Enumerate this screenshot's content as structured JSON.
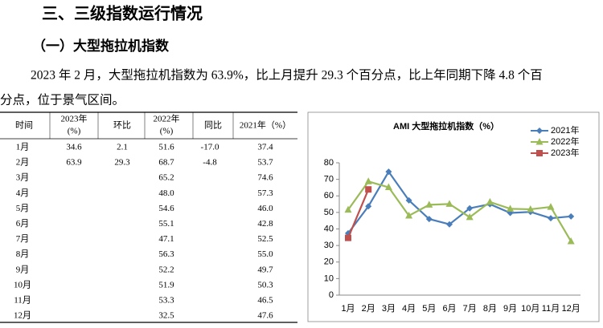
{
  "header": {
    "title": "三、三级指数运行情况",
    "subtitle": "（一）大型拖拉机指数"
  },
  "paragraph": {
    "lines": [
      "2023 年 2 月，大型拖拉机指数为 63.9%，比上月提升 29.3 个百分点，比上年同期下降 4.8 个百",
      "分点，位于景气区间。"
    ]
  },
  "table": {
    "header": [
      [
        "时间"
      ],
      [
        "2023年",
        "(%)"
      ],
      [
        "环比"
      ],
      [
        "2022年",
        "(%)"
      ],
      [
        "同比"
      ],
      [
        "2021年（%）"
      ]
    ],
    "rows": [
      [
        "1月",
        "34.6",
        "2.1",
        "51.6",
        "-17.0",
        "37.4"
      ],
      [
        "2月",
        "63.9",
        "29.3",
        "68.7",
        "-4.8",
        "53.7"
      ],
      [
        "3月",
        null,
        null,
        "65.2",
        null,
        "74.6"
      ],
      [
        "4月",
        null,
        null,
        "48.0",
        null,
        "57.3"
      ],
      [
        "5月",
        null,
        null,
        "54.6",
        null,
        "46.0"
      ],
      [
        "6月",
        null,
        null,
        "55.1",
        null,
        "42.8"
      ],
      [
        "7月",
        null,
        null,
        "47.1",
        null,
        "52.5"
      ],
      [
        "8月",
        null,
        null,
        "56.3",
        null,
        "55.0"
      ],
      [
        "9月",
        null,
        null,
        "52.2",
        null,
        "49.7"
      ],
      [
        "10月",
        null,
        null,
        "51.9",
        null,
        "50.3"
      ],
      [
        "11月",
        null,
        null,
        "53.3",
        null,
        "46.5"
      ],
      [
        "12月",
        null,
        null,
        "32.5",
        null,
        "47.6"
      ]
    ]
  },
  "chart_data": {
    "type": "line",
    "title": "AMI 大型拖拉机指数（%）",
    "categories": [
      "1月",
      "2月",
      "3月",
      "4月",
      "5月",
      "6月",
      "7月",
      "8月",
      "9月",
      "10月",
      "11月",
      "12月"
    ],
    "series": [
      {
        "name": "2021年",
        "color": "#4a7ebb",
        "marker": "diamond",
        "values": [
          37.4,
          53.7,
          74.6,
          57.3,
          46.0,
          42.8,
          52.5,
          55.0,
          49.7,
          50.3,
          46.5,
          47.6
        ]
      },
      {
        "name": "2022年",
        "color": "#9bbb59",
        "marker": "triangle",
        "values": [
          51.6,
          68.7,
          65.2,
          48.0,
          54.6,
          55.1,
          47.1,
          56.3,
          52.2,
          51.9,
          53.3,
          32.5
        ]
      },
      {
        "name": "2023年",
        "color": "#c0504d",
        "marker": "square",
        "values": [
          34.6,
          63.9,
          null,
          null,
          null,
          null,
          null,
          null,
          null,
          null,
          null,
          null
        ]
      }
    ],
    "ylim": [
      0,
      80
    ],
    "yticks": [
      0,
      10,
      20,
      30,
      40,
      50,
      60,
      70,
      80
    ],
    "legend": "top-right"
  }
}
